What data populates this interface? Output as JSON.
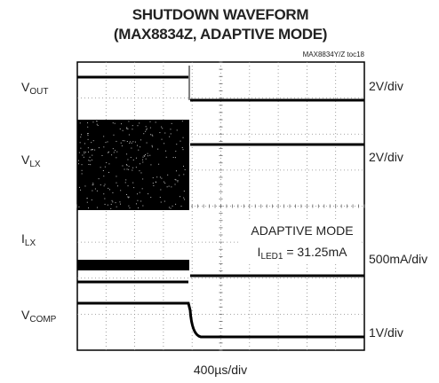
{
  "header": {
    "title": "SHUTDOWN WAVEFORM",
    "subtitle": "(MAX8834Z, ADAPTIVE MODE)",
    "figure_id": "MAX8834Y/Z toc18"
  },
  "channels": [
    {
      "label": {
        "main": "V",
        "sub": "OUT"
      },
      "scale": "2V/div"
    },
    {
      "label": {
        "main": "V",
        "sub": "LX"
      },
      "scale": "2V/div"
    },
    {
      "label": {
        "main": "I",
        "sub": "LX"
      },
      "scale": "500mA/div"
    },
    {
      "label": {
        "main": "V",
        "sub": "COMP"
      },
      "scale": "1V/div"
    }
  ],
  "annotation": {
    "line1": "ADAPTIVE MODE",
    "line2": {
      "main": "I",
      "sub": "LED1",
      "rest": " = 31.25mA"
    }
  },
  "time_scale": "400µs/div"
}
